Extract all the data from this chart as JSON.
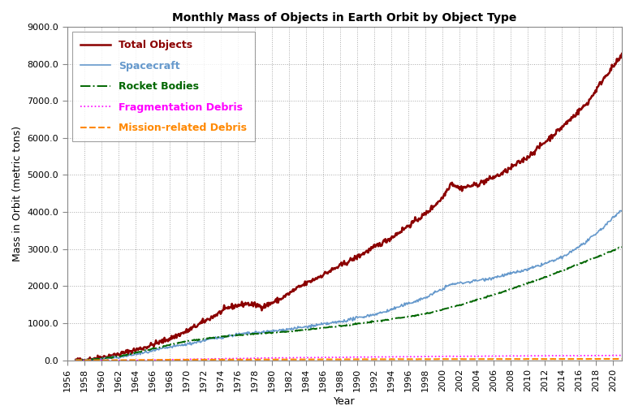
{
  "title": "Monthly Mass of Objects in Earth Orbit by Object Type",
  "xlabel": "Year",
  "ylabel": "Mass in Orbit (metric tons)",
  "xlim": [
    1956,
    2021
  ],
  "ylim": [
    0,
    9000
  ],
  "yticks": [
    0,
    1000,
    2000,
    3000,
    4000,
    5000,
    6000,
    7000,
    8000,
    9000
  ],
  "xtick_years": [
    1956,
    1958,
    1960,
    1962,
    1964,
    1966,
    1968,
    1970,
    1972,
    1974,
    1976,
    1978,
    1980,
    1982,
    1984,
    1986,
    1988,
    1990,
    1992,
    1994,
    1996,
    1998,
    2000,
    2002,
    2004,
    2006,
    2008,
    2010,
    2012,
    2014,
    2016,
    2018,
    2020
  ],
  "legend": [
    {
      "label": "Total Objects",
      "color": "#8B0000",
      "linestyle": "solid",
      "linewidth": 1.8
    },
    {
      "label": "Spacecraft",
      "color": "#6699CC",
      "linestyle": "solid",
      "linewidth": 1.2
    },
    {
      "label": "Rocket Bodies",
      "color": "#006600",
      "linestyle": "dashdot",
      "linewidth": 1.4
    },
    {
      "label": "Fragmentation Debris",
      "color": "#FF00FF",
      "linestyle": "dotted",
      "linewidth": 1.2
    },
    {
      "label": "Mission-related Debris",
      "color": "#FF8800",
      "linestyle": "dashed",
      "linewidth": 1.5
    }
  ],
  "background_color": "#FFFFFF",
  "grid_color": "#AAAAAA",
  "title_fontsize": 10,
  "axis_label_fontsize": 9,
  "tick_fontsize": 8
}
